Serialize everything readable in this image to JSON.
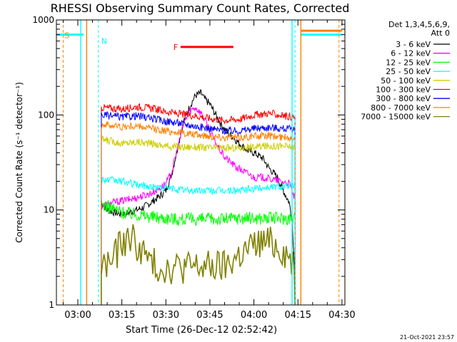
{
  "chart_data": {
    "type": "line",
    "title": "RHESSI Observing Summary Count Rates, Corrected",
    "xlabel": "Start Time (26-Dec-12 02:52:42)",
    "ylabel": "Corrected Count Rate (s⁻¹ detector⁻¹)",
    "y_scale": "log",
    "ylim": [
      1,
      1000
    ],
    "xlim": [
      "02:52:42",
      "04:31:00"
    ],
    "x_ticks": [
      "03:00",
      "03:15",
      "03:30",
      "03:45",
      "04:00",
      "04:15",
      "04:30"
    ],
    "y_ticks": [
      {
        "value": 1,
        "label": "1"
      },
      {
        "value": 10,
        "label": "10"
      },
      {
        "value": 100,
        "label": "100"
      },
      {
        "value": 1000,
        "label": "1000"
      }
    ],
    "grid": false,
    "legend": {
      "position": "right",
      "header": [
        "Det 1,3,4,5,6,9,",
        "Att 0"
      ],
      "entries": [
        {
          "label": "3 - 6 keV",
          "color": "#000000"
        },
        {
          "label": "6 - 12 keV",
          "color": "#ff00ff"
        },
        {
          "label": "12 - 25 keV",
          "color": "#00ff00"
        },
        {
          "label": "25 - 50 keV",
          "color": "#00ffff"
        },
        {
          "label": "50 - 100 keV",
          "color": "#cccc00"
        },
        {
          "label": "100 - 300 keV",
          "color": "#ff0000"
        },
        {
          "label": "300 - 800 keV",
          "color": "#0000ff"
        },
        {
          "label": "800 - 7000 keV",
          "color": "#ff8000"
        },
        {
          "label": "7000 - 15000 keV",
          "color": "#808000"
        }
      ]
    },
    "annotations": {
      "saa": {
        "label": "S",
        "color": "#ff8000",
        "value": 700
      },
      "night": {
        "label": "N",
        "color": "#00ffff",
        "value": 700
      },
      "flare": {
        "label": "F",
        "color": "#ff0000",
        "value": 520,
        "start": "03:35",
        "end": "03:53"
      }
    },
    "series": [
      {
        "name": "3 - 6 keV",
        "color": "#000000",
        "x": [
          "03:08",
          "03:10",
          "03:12",
          "03:15",
          "03:17",
          "03:20",
          "03:22",
          "03:25",
          "03:28",
          "03:30",
          "03:32",
          "03:34",
          "03:36",
          "03:38",
          "03:40",
          "03:42",
          "03:43",
          "03:45",
          "03:47",
          "03:49",
          "03:51",
          "03:53",
          "03:55",
          "03:58",
          "04:00",
          "04:03",
          "04:05",
          "04:08",
          "04:10",
          "04:12",
          "04:13",
          "04:14"
        ],
        "y": [
          12,
          10,
          9.5,
          9,
          9.3,
          10,
          10.5,
          12,
          14,
          16,
          24,
          45,
          85,
          120,
          160,
          170,
          150,
          130,
          100,
          78,
          65,
          58,
          50,
          42,
          40,
          35,
          28,
          22,
          16,
          12,
          8,
          2
        ]
      },
      {
        "name": "6 - 12 keV",
        "color": "#ff00ff",
        "x": [
          "03:08",
          "03:10",
          "03:12",
          "03:15",
          "03:18",
          "03:20",
          "03:22",
          "03:25",
          "03:28",
          "03:30",
          "03:32",
          "03:34",
          "03:36",
          "03:38",
          "03:40",
          "03:42",
          "03:44",
          "03:46",
          "03:48",
          "03:50",
          "03:52",
          "03:54",
          "03:56",
          "03:58",
          "04:00",
          "04:03",
          "04:06",
          "04:09",
          "04:12",
          "04:14"
        ],
        "y": [
          11,
          11.5,
          12,
          12.5,
          13,
          13.5,
          14,
          15,
          17,
          19,
          25,
          45,
          80,
          110,
          120,
          105,
          80,
          58,
          45,
          36,
          32,
          28,
          26,
          24,
          22,
          22,
          21,
          20,
          19,
          13
        ]
      },
      {
        "name": "12 - 25 keV",
        "color": "#00ff00",
        "x": [
          "03:08",
          "03:15",
          "03:25",
          "03:35",
          "03:45",
          "03:55",
          "04:05",
          "04:14"
        ],
        "y": [
          11.5,
          9.5,
          8.5,
          8,
          8,
          8.2,
          8.2,
          8.2
        ]
      },
      {
        "name": "25 - 50 keV",
        "color": "#00ffff",
        "x": [
          "03:08",
          "03:15",
          "03:20",
          "03:25",
          "03:30",
          "03:38",
          "03:45",
          "03:55",
          "04:05",
          "04:14"
        ],
        "y": [
          21,
          20,
          18.5,
          17.5,
          17,
          16,
          16,
          16,
          17.5,
          18
        ]
      },
      {
        "name": "50 - 100 keV",
        "color": "#cccc00",
        "x": [
          "03:08",
          "03:12",
          "03:15",
          "03:20",
          "03:25",
          "03:30",
          "03:35",
          "03:40",
          "03:45",
          "03:50",
          "03:55",
          "04:00",
          "04:05",
          "04:10",
          "04:14"
        ],
        "y": [
          55,
          53,
          50,
          52,
          50,
          47,
          46,
          46,
          45,
          45,
          45,
          46,
          47,
          47,
          46
        ]
      },
      {
        "name": "100 - 300 keV",
        "color": "#ff0000",
        "x": [
          "03:08",
          "03:15",
          "03:20",
          "03:25",
          "03:30",
          "03:35",
          "03:40",
          "03:45",
          "03:50",
          "03:55",
          "04:00",
          "04:05",
          "04:10",
          "04:14"
        ],
        "y": [
          120,
          115,
          122,
          118,
          108,
          102,
          98,
          92,
          88,
          90,
          100,
          104,
          98,
          95
        ]
      },
      {
        "name": "300 - 800 keV",
        "color": "#0000ff",
        "x": [
          "03:08",
          "03:15",
          "03:20",
          "03:25",
          "03:30",
          "03:35",
          "03:40",
          "03:45",
          "03:50",
          "03:55",
          "04:00",
          "04:05",
          "04:10",
          "04:14"
        ],
        "y": [
          100,
          95,
          98,
          92,
          86,
          82,
          76,
          72,
          68,
          68,
          72,
          74,
          72,
          70
        ]
      },
      {
        "name": "800 - 7000 keV",
        "color": "#ff8000",
        "x": [
          "03:08",
          "03:15",
          "03:20",
          "03:25",
          "03:30",
          "03:35",
          "03:40",
          "03:45",
          "03:50",
          "03:55",
          "04:00",
          "04:05",
          "04:10",
          "04:14"
        ],
        "y": [
          80,
          75,
          76,
          72,
          68,
          65,
          62,
          60,
          58,
          58,
          60,
          60,
          58,
          58
        ]
      },
      {
        "name": "7000 - 15000 keV",
        "color": "#808000",
        "x": [
          "03:08",
          "03:12",
          "03:15",
          "03:18",
          "03:21",
          "03:24",
          "03:27",
          "03:30",
          "03:35",
          "03:40",
          "03:45",
          "03:50",
          "03:53",
          "03:56",
          "03:59",
          "04:02",
          "04:05",
          "04:08",
          "04:11",
          "04:14"
        ],
        "y": [
          2.5,
          3,
          4.5,
          5.2,
          4,
          3,
          2.5,
          2.5,
          2.5,
          2.5,
          2.5,
          2.5,
          3,
          3.5,
          4,
          4.5,
          4.5,
          4.2,
          3.5,
          2.5
        ]
      }
    ]
  },
  "footer": {
    "timestamp": "21-Oct-2021 23:57"
  }
}
